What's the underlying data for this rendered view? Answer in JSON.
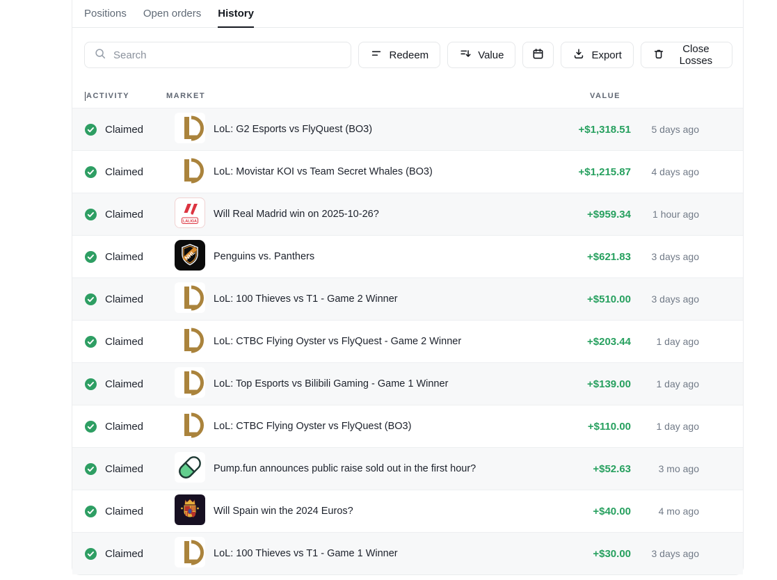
{
  "tabs": [
    {
      "label": "Positions",
      "active": false
    },
    {
      "label": "Open orders",
      "active": false
    },
    {
      "label": "History",
      "active": true
    }
  ],
  "toolbar": {
    "search_placeholder": "Search",
    "redeem_label": "Redeem",
    "value_label": "Value",
    "export_label": "Export",
    "close_losses_label": "Close Losses"
  },
  "table": {
    "headers": {
      "activity": "ACTIVITY",
      "market": "MARKET",
      "value": "VALUE"
    },
    "rows": [
      {
        "status": "Claimed",
        "icon": "lol-icon",
        "market": "LoL: G2 Esports vs FlyQuest (BO3)",
        "value": "+$1,318.51",
        "time": "5 days ago"
      },
      {
        "status": "Claimed",
        "icon": "lol-icon",
        "market": "LoL: Movistar KOI vs Team Secret Whales (BO3)",
        "value": "+$1,215.87",
        "time": "4 days ago"
      },
      {
        "status": "Claimed",
        "icon": "laliga-icon",
        "market": "Will Real Madrid win on 2025-10-26?",
        "value": "+$959.34",
        "time": "1 hour ago"
      },
      {
        "status": "Claimed",
        "icon": "nhl-icon",
        "market": "Penguins vs. Panthers",
        "value": "+$621.83",
        "time": "3 days ago"
      },
      {
        "status": "Claimed",
        "icon": "lol-icon",
        "market": "LoL: 100 Thieves vs T1 - Game 2 Winner",
        "value": "+$510.00",
        "time": "3 days ago"
      },
      {
        "status": "Claimed",
        "icon": "lol-icon",
        "market": "LoL: CTBC Flying Oyster vs FlyQuest - Game 2 Winner",
        "value": "+$203.44",
        "time": "1 day ago"
      },
      {
        "status": "Claimed",
        "icon": "lol-icon",
        "market": "LoL: Top Esports vs Bilibili Gaming - Game 1 Winner",
        "value": "+$139.00",
        "time": "1 day ago"
      },
      {
        "status": "Claimed",
        "icon": "lol-icon",
        "market": "LoL: CTBC Flying Oyster vs FlyQuest (BO3)",
        "value": "+$110.00",
        "time": "1 day ago"
      },
      {
        "status": "Claimed",
        "icon": "pill-icon",
        "market": "Pump.fun announces public raise sold out in the first hour?",
        "value": "+$52.63",
        "time": "3 mo ago"
      },
      {
        "status": "Claimed",
        "icon": "spain-icon",
        "market": "Will Spain win the 2024 Euros?",
        "value": "+$40.00",
        "time": "4 mo ago"
      },
      {
        "status": "Claimed",
        "icon": "lol-icon",
        "market": "LoL: 100 Thieves vs T1 - Game 1 Winner",
        "value": "+$30.00",
        "time": "3 days ago"
      }
    ]
  },
  "colors": {
    "positive_green": "#27a05f",
    "check_green": "#2e9e63",
    "row_alt_bg": "#f7f8f9",
    "border": "#edeff1",
    "lol_gold": "#aa833c",
    "laliga_red": "#dc3440",
    "pill_green": "#63cf8e"
  }
}
